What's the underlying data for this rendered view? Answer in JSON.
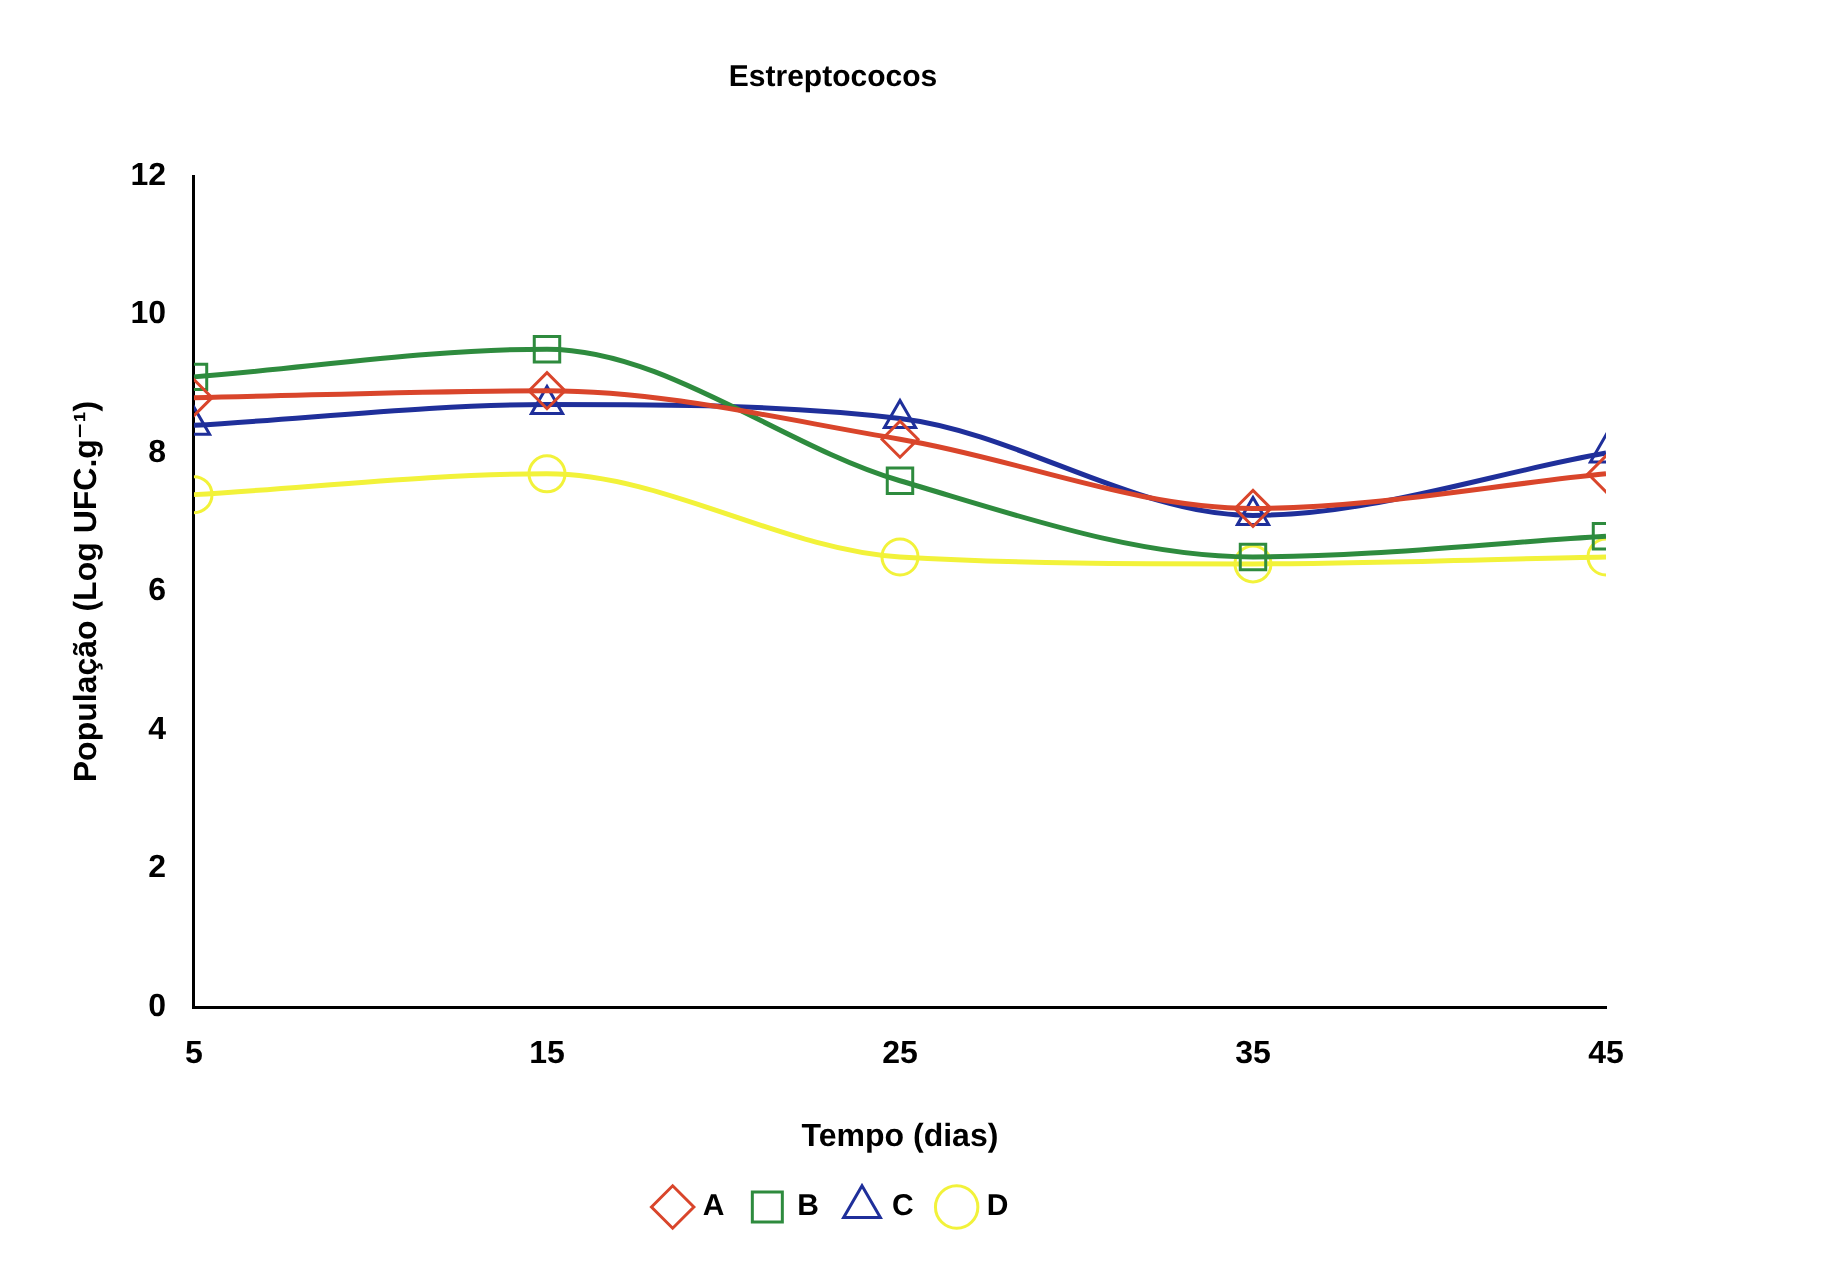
{
  "chart_data": {
    "type": "line",
    "title": "Estreptococos",
    "xlabel": "Tempo (dias)",
    "ylabel": "População (Log UFC.g⁻¹)",
    "x": [
      5,
      15,
      25,
      35,
      45
    ],
    "xlim": [
      5,
      45
    ],
    "xticks": [
      5,
      15,
      25,
      35,
      45
    ],
    "ylim": [
      0,
      12
    ],
    "yticks": [
      0,
      2,
      4,
      6,
      8,
      10,
      12
    ],
    "legend": "bottom",
    "series": [
      {
        "name": "A",
        "color": "#d9452b",
        "marker": "diamond",
        "values": [
          8.8,
          8.9,
          8.2,
          7.2,
          7.7
        ]
      },
      {
        "name": "B",
        "color": "#2e8b3e",
        "marker": "square",
        "values": [
          9.1,
          9.5,
          7.6,
          6.5,
          6.8
        ]
      },
      {
        "name": "C",
        "color": "#1f2f9a",
        "marker": "triangle",
        "values": [
          8.4,
          8.7,
          8.5,
          7.1,
          8.0
        ]
      },
      {
        "name": "D",
        "color": "#f2f23a",
        "marker": "circle",
        "values": [
          7.4,
          7.7,
          6.5,
          6.4,
          6.5
        ]
      }
    ]
  }
}
